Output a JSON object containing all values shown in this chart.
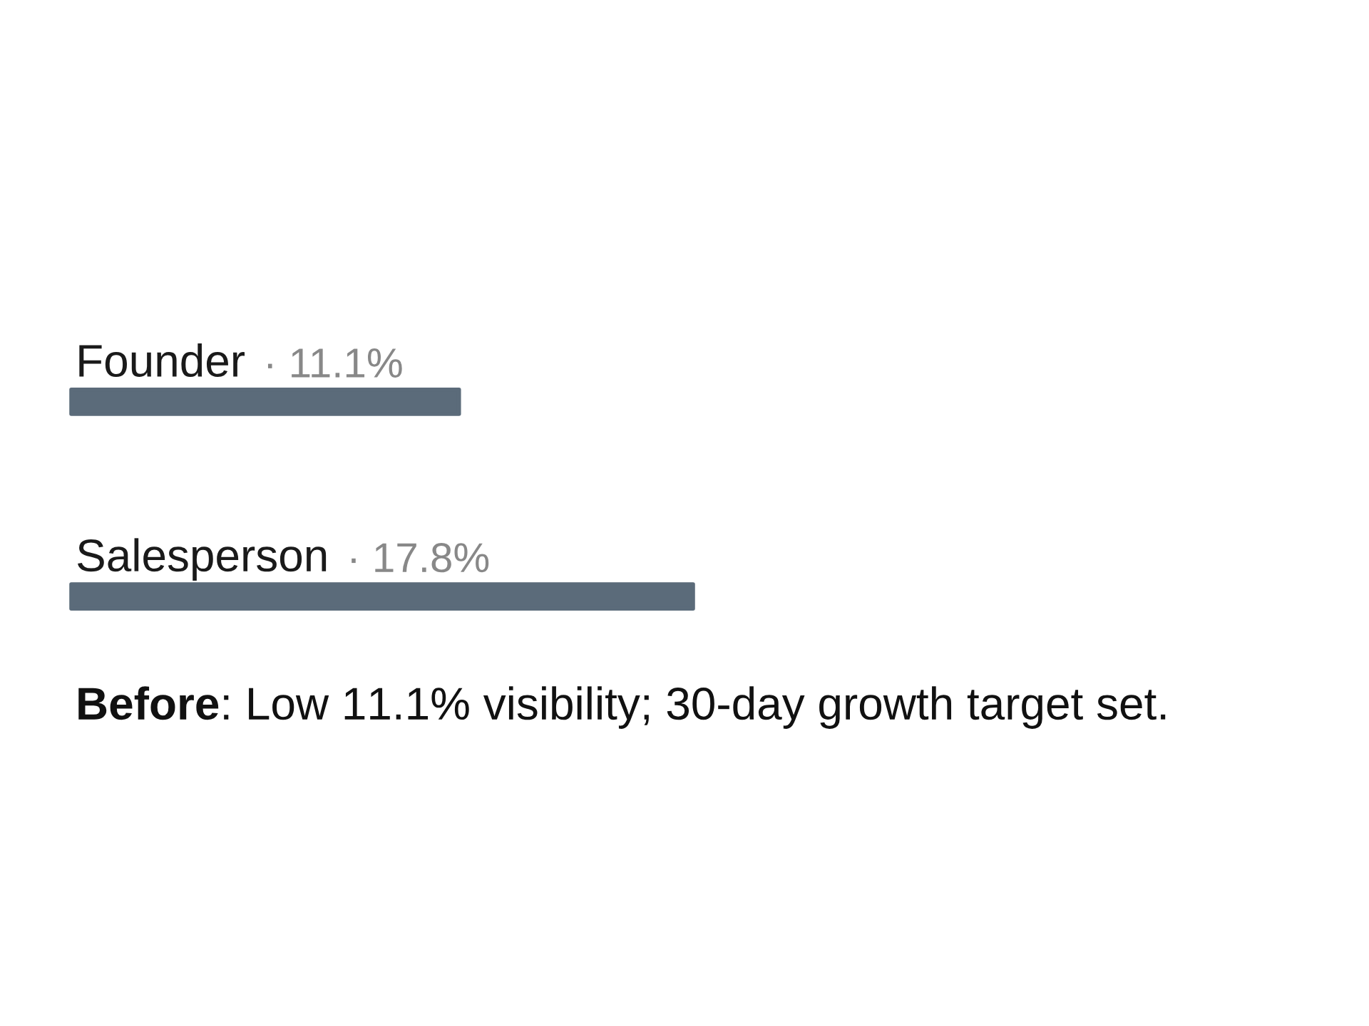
{
  "chart_data": {
    "type": "bar",
    "orientation": "horizontal",
    "categories": [
      "Founder",
      "Salesperson"
    ],
    "values": [
      11.1,
      17.8
    ],
    "value_labels": [
      "· 11.1%",
      "· 17.8%"
    ],
    "color": "#5b6b7a",
    "annotations": [
      "Before: Low 11.1% visibility; 30-day growth target set."
    ]
  }
}
